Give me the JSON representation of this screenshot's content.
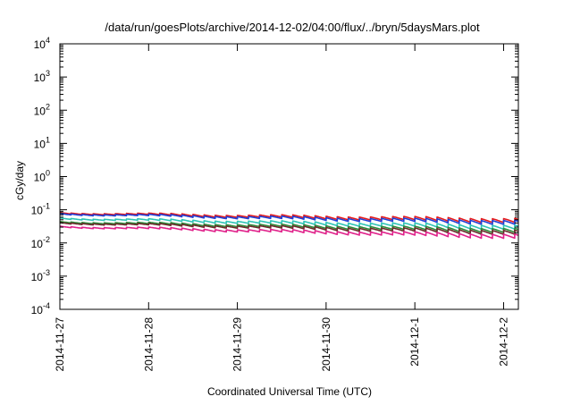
{
  "chart_data": {
    "type": "line",
    "title": "/data/run/goesPlots/archive/2014-12-02/04:00/flux/../bryn/5daysMars.plot",
    "xlabel": "Coordinated Universal Time (UTC)",
    "ylabel": "cGy/day",
    "yscale": "log",
    "ylim": [
      0.0001,
      10000
    ],
    "y_ticks": [
      {
        "value": 0.0001,
        "base": "10",
        "exp": "-4"
      },
      {
        "value": 0.001,
        "base": "10",
        "exp": "-3"
      },
      {
        "value": 0.01,
        "base": "10",
        "exp": "-2"
      },
      {
        "value": 0.1,
        "base": "10",
        "exp": "-1"
      },
      {
        "value": 1,
        "base": "10",
        "exp": "0"
      },
      {
        "value": 10,
        "base": "10",
        "exp": "1"
      },
      {
        "value": 100,
        "base": "10",
        "exp": "2"
      },
      {
        "value": 1000,
        "base": "10",
        "exp": "3"
      },
      {
        "value": 10000,
        "base": "10",
        "exp": "4"
      }
    ],
    "xlim": [
      "2014-11-27T00:00",
      "2014-12-02T04:00"
    ],
    "x_ticks": [
      "2014-11-27",
      "2014-11-28",
      "2014-11-29",
      "2014-11-30",
      "2014-12-1",
      "2014-12-2"
    ],
    "x_tick_dates": [
      "2014-11-27T00:00",
      "2014-11-28T00:00",
      "2014-11-29T00:00",
      "2014-11-30T00:00",
      "2014-12-01T00:00",
      "2014-12-02T00:00"
    ],
    "grid": false,
    "sawtooth_period_hours": 3,
    "series": [
      {
        "color": "#e41a1c",
        "start": 0.08,
        "end": 0.048
      },
      {
        "color": "#1f3fd6",
        "start": 0.075,
        "end": 0.042
      },
      {
        "color": "#2ec4b6",
        "start": 0.055,
        "end": 0.03
      },
      {
        "color": "#2e8b3a",
        "start": 0.043,
        "end": 0.024
      },
      {
        "color": "#6b2a2a",
        "start": 0.04,
        "end": 0.021
      },
      {
        "color": "#e0218a",
        "start": 0.031,
        "end": 0.016
      }
    ]
  }
}
